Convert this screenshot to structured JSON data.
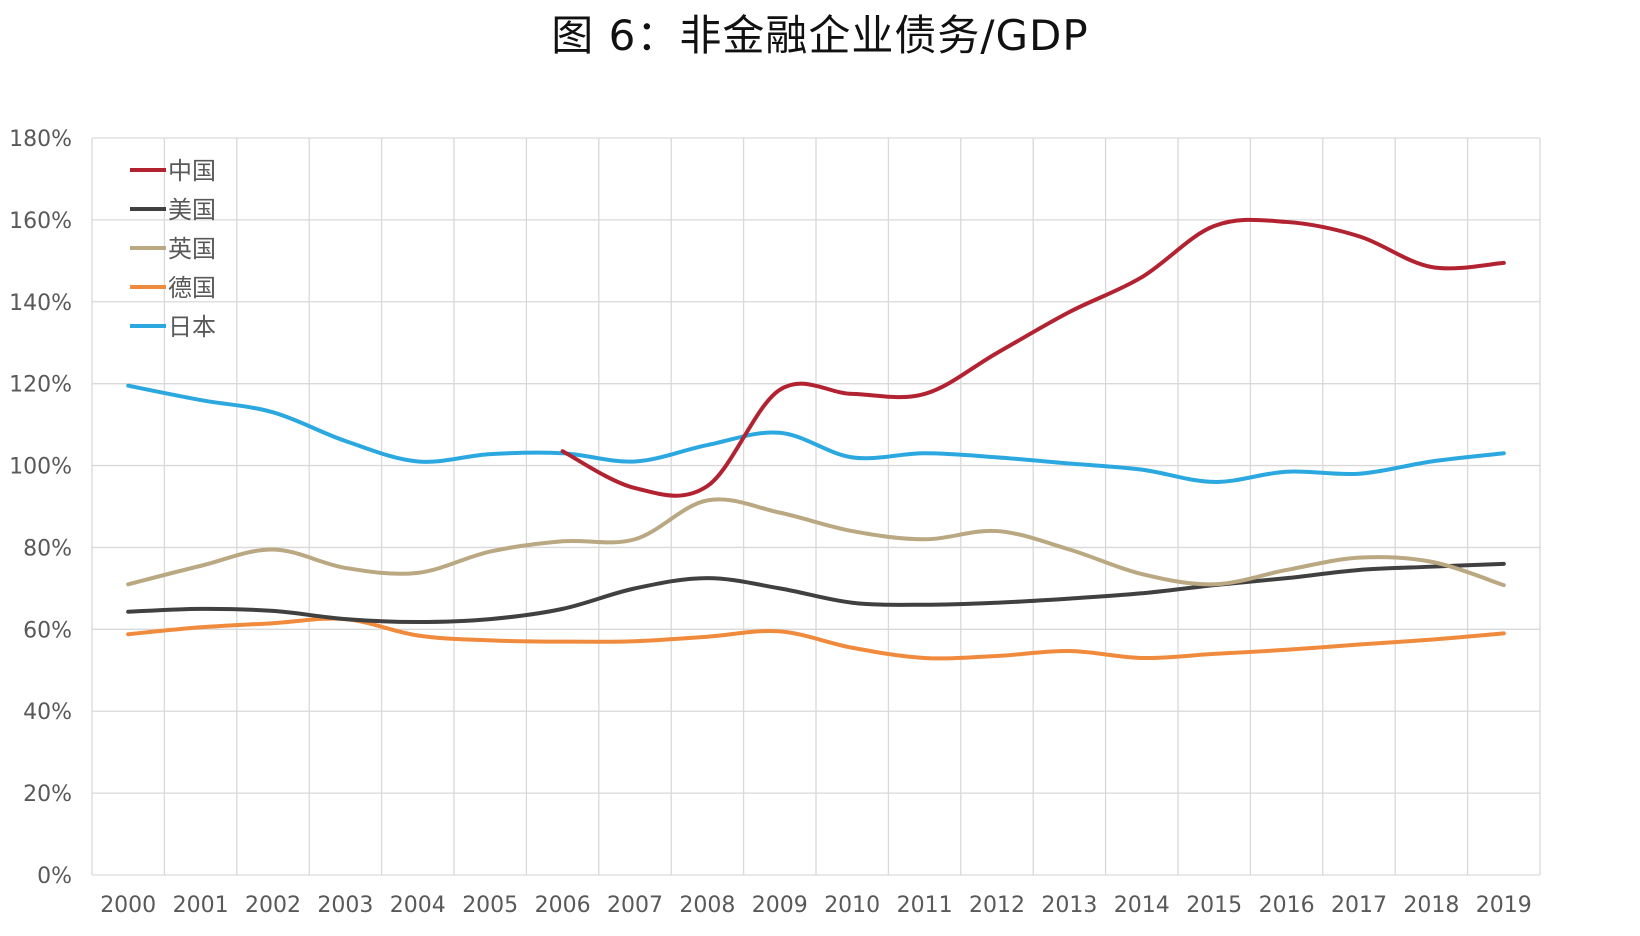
{
  "chart_data": {
    "type": "line",
    "title": "图 6：非金融企业债务/GDP",
    "xlabel": "",
    "ylabel": "",
    "ylim": [
      0,
      180
    ],
    "y_ticks": [
      "0%",
      "20%",
      "40%",
      "60%",
      "80%",
      "100%",
      "120%",
      "140%",
      "160%",
      "180%"
    ],
    "y_tick_values": [
      0,
      20,
      40,
      60,
      80,
      100,
      120,
      140,
      160,
      180
    ],
    "categories": [
      "2000",
      "2001",
      "2002",
      "2003",
      "2004",
      "2005",
      "2006",
      "2007",
      "2008",
      "2009",
      "2010",
      "2011",
      "2012",
      "2013",
      "2014",
      "2015",
      "2016",
      "2017",
      "2018",
      "2019"
    ],
    "grid": true,
    "legend_position": "top-left",
    "series": [
      {
        "name": "中国",
        "color": "#B22231",
        "values": [
          null,
          null,
          null,
          null,
          null,
          null,
          103.5,
          94.5,
          95,
          118.5,
          117.5,
          117.5,
          127.5,
          137.5,
          146,
          158.5,
          159.5,
          156,
          148.5,
          149.5
        ]
      },
      {
        "name": "美国",
        "color": "#404040",
        "values": [
          64.3,
          65,
          64.5,
          62.5,
          61.8,
          62.5,
          65,
          70,
          72.5,
          70,
          66.5,
          66,
          66.5,
          67.5,
          68.8,
          70.8,
          72.5,
          74.5,
          75.3,
          76
        ]
      },
      {
        "name": "英国",
        "color": "#B9A881",
        "values": [
          71,
          75.5,
          79.5,
          75,
          73.8,
          79,
          81.5,
          82,
          91.5,
          88.5,
          84,
          82,
          84,
          79.5,
          73.5,
          71,
          74.5,
          77.5,
          76.5,
          70.8
        ]
      },
      {
        "name": "德国",
        "color": "#F08A3C",
        "values": [
          58.8,
          60.5,
          61.5,
          62.5,
          58.5,
          57.3,
          57,
          57.1,
          58.2,
          59.5,
          55.5,
          53,
          53.5,
          54.7,
          53,
          54,
          55,
          56.3,
          57.5,
          59
        ]
      },
      {
        "name": "日本",
        "color": "#2BA8E0",
        "values": [
          119.5,
          116,
          113,
          106,
          101,
          102.8,
          103,
          101,
          105,
          108,
          102,
          103,
          102,
          100.5,
          99,
          96,
          98.5,
          98,
          101,
          103
        ]
      }
    ]
  }
}
